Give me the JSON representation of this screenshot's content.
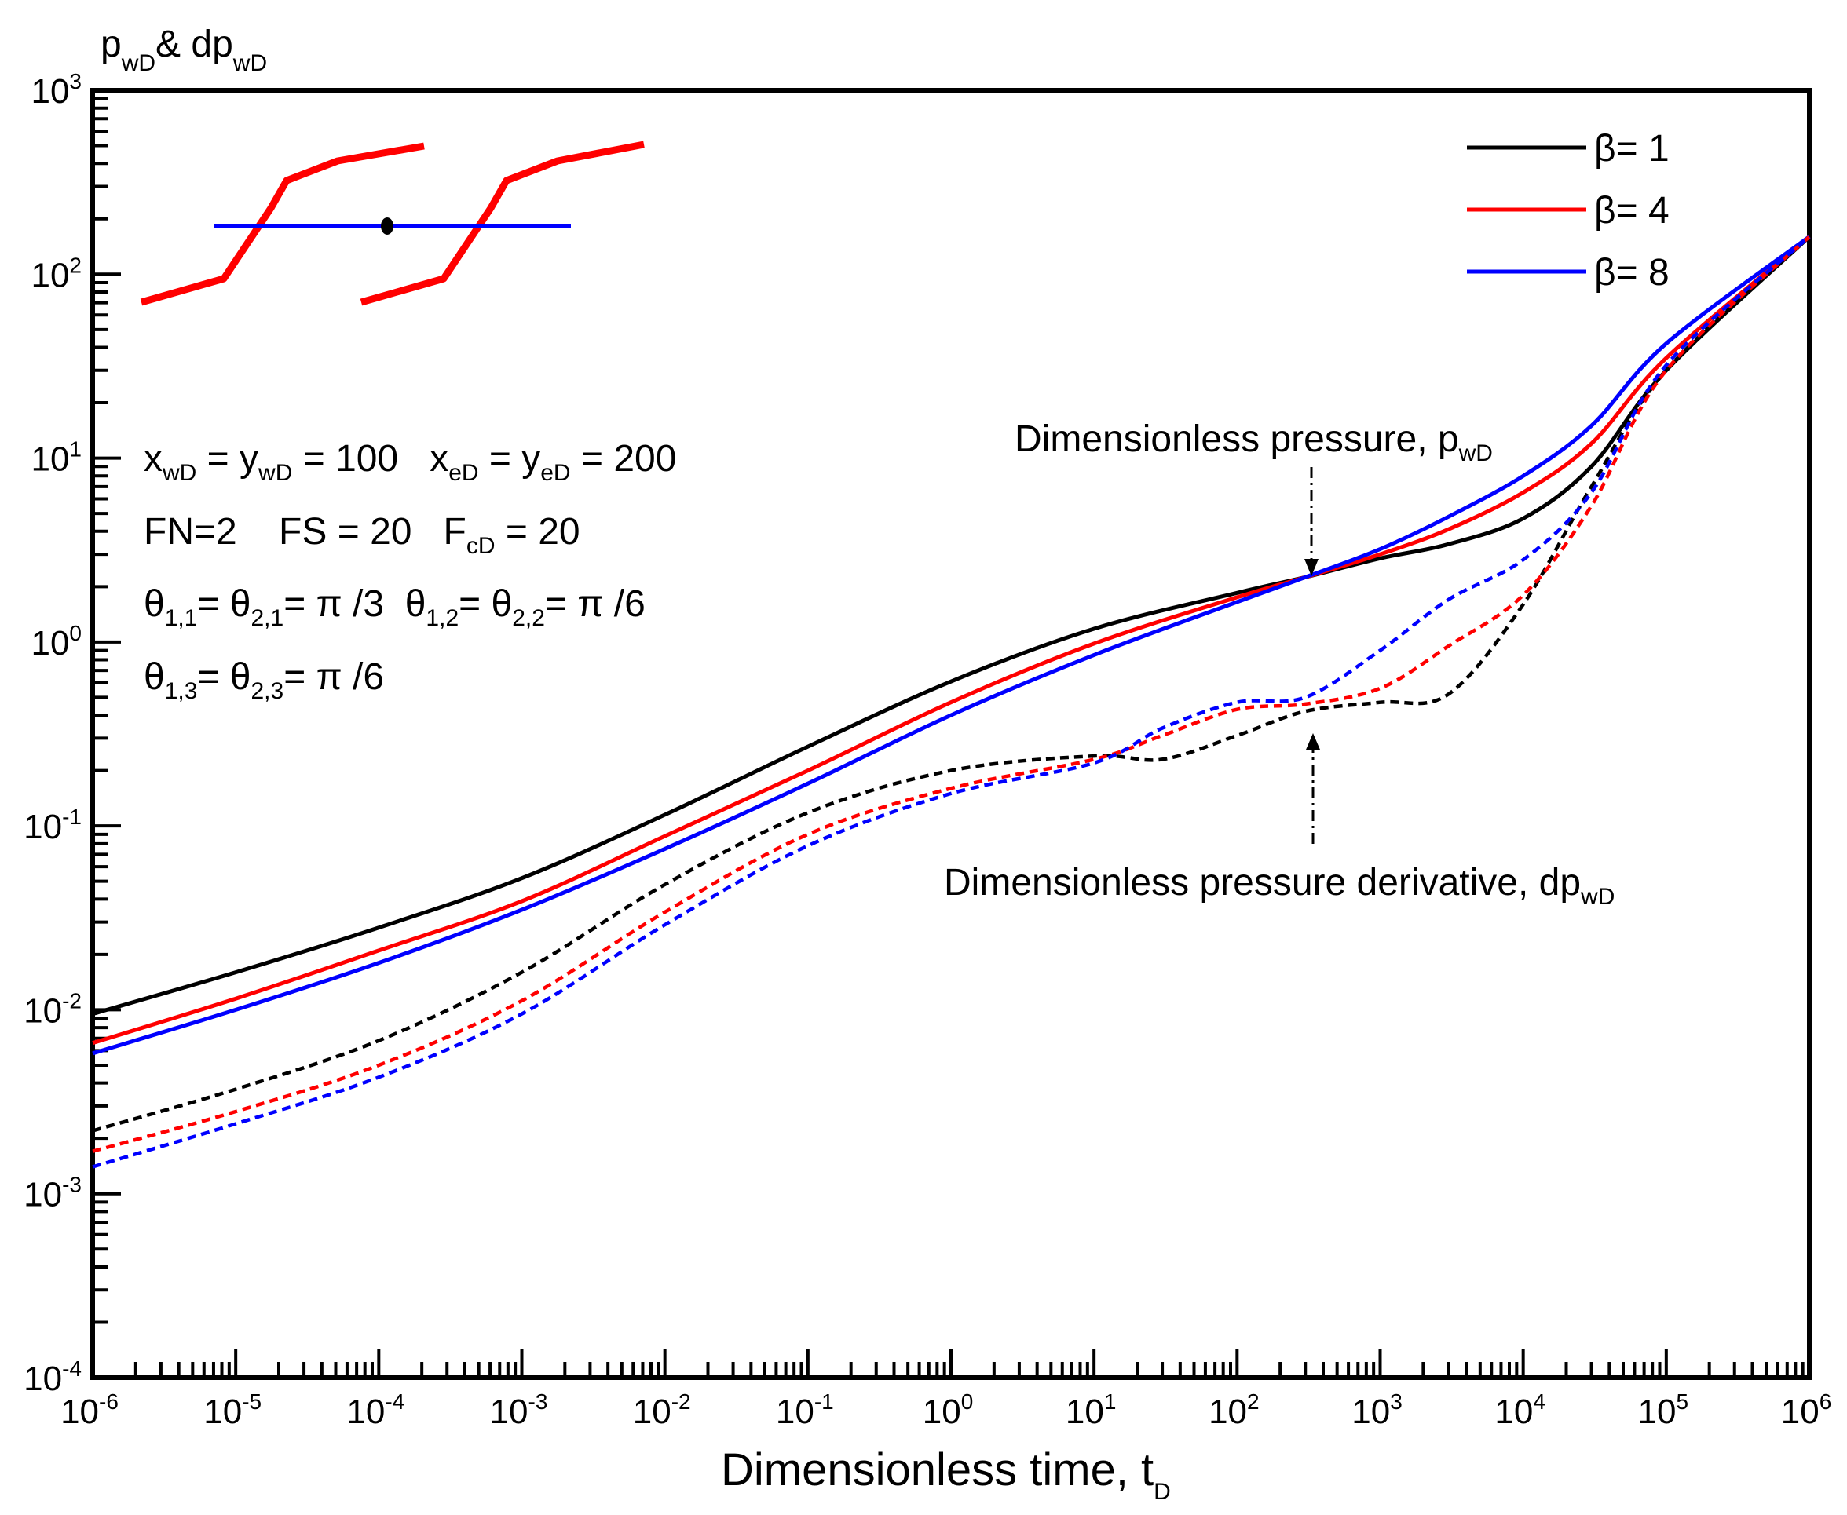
{
  "chart_data": {
    "type": "line",
    "title": "",
    "xlabel": "Dimensionless time, t",
    "xlabel_sub": "D",
    "ylabel": {
      "p": "p",
      "p_sub": "wD",
      "amp": "& dp",
      "dp_sub": "wD"
    },
    "xscale": "log",
    "yscale": "log",
    "xlim": [
      1e-06,
      1000000.0
    ],
    "ylim": [
      0.0001,
      1000.0
    ],
    "x_ticks": [
      {
        "base": "10",
        "exp": "-6"
      },
      {
        "base": "10",
        "exp": "-5"
      },
      {
        "base": "10",
        "exp": "-4"
      },
      {
        "base": "10",
        "exp": "-3"
      },
      {
        "base": "10",
        "exp": "-2"
      },
      {
        "base": "10",
        "exp": "-1"
      },
      {
        "base": "10",
        "exp": "0"
      },
      {
        "base": "10",
        "exp": "1"
      },
      {
        "base": "10",
        "exp": "2"
      },
      {
        "base": "10",
        "exp": "3"
      },
      {
        "base": "10",
        "exp": "4"
      },
      {
        "base": "10",
        "exp": "5"
      },
      {
        "base": "10",
        "exp": "6"
      }
    ],
    "y_ticks": [
      {
        "base": "10",
        "exp": "-4"
      },
      {
        "base": "10",
        "exp": "-3"
      },
      {
        "base": "10",
        "exp": "-2"
      },
      {
        "base": "10",
        "exp": "-1"
      },
      {
        "base": "10",
        "exp": "0"
      },
      {
        "base": "10",
        "exp": "1"
      },
      {
        "base": "10",
        "exp": "2"
      },
      {
        "base": "10",
        "exp": "3"
      }
    ],
    "legend": [
      {
        "label": "β= 1",
        "color": "#000000"
      },
      {
        "label": "β= 4",
        "color": "#ff0000"
      },
      {
        "label": "β= 8",
        "color": "#0000ff"
      }
    ],
    "series": [
      {
        "name": "β= 1 pressure",
        "color": "#000000",
        "dash": "solid",
        "points": [
          [
            1e-06,
            0.0095
          ],
          [
            1e-05,
            0.016
          ],
          [
            0.0001,
            0.028
          ],
          [
            0.001,
            0.052
          ],
          [
            0.01,
            0.115
          ],
          [
            0.1,
            0.27
          ],
          [
            1,
            0.61
          ],
          [
            10,
            1.18
          ],
          [
            100,
            1.85
          ],
          [
            300,
            2.25
          ],
          [
            1000,
            2.85
          ],
          [
            3000,
            3.4
          ],
          [
            10000,
            4.7
          ],
          [
            30000,
            9
          ],
          [
            100000,
            30
          ],
          [
            1000000,
            160
          ]
        ]
      },
      {
        "name": "β= 4 pressure",
        "color": "#ff0000",
        "dash": "solid",
        "points": [
          [
            1e-06,
            0.0066
          ],
          [
            1e-05,
            0.0115
          ],
          [
            0.0001,
            0.021
          ],
          [
            0.001,
            0.039
          ],
          [
            0.01,
            0.088
          ],
          [
            0.1,
            0.2
          ],
          [
            1,
            0.47
          ],
          [
            10,
            0.98
          ],
          [
            100,
            1.75
          ],
          [
            300,
            2.25
          ],
          [
            1000,
            3.0
          ],
          [
            3000,
            4.1
          ],
          [
            10000,
            6.5
          ],
          [
            30000,
            12
          ],
          [
            100000,
            35
          ],
          [
            1000000,
            160
          ]
        ]
      },
      {
        "name": "β= 8 pressure",
        "color": "#0000ff",
        "dash": "solid",
        "points": [
          [
            1e-06,
            0.0058
          ],
          [
            1e-05,
            0.01
          ],
          [
            0.0001,
            0.018
          ],
          [
            0.001,
            0.035
          ],
          [
            0.01,
            0.075
          ],
          [
            0.1,
            0.17
          ],
          [
            1,
            0.4
          ],
          [
            10,
            0.85
          ],
          [
            100,
            1.65
          ],
          [
            300,
            2.25
          ],
          [
            1000,
            3.2
          ],
          [
            3000,
            4.8
          ],
          [
            10000,
            8
          ],
          [
            30000,
            15
          ],
          [
            100000,
            42
          ],
          [
            1000000,
            160
          ]
        ]
      },
      {
        "name": "β= 1 derivative",
        "color": "#000000",
        "dash": "dashed",
        "points": [
          [
            1e-06,
            0.0022
          ],
          [
            1e-05,
            0.0037
          ],
          [
            0.0001,
            0.0068
          ],
          [
            0.001,
            0.016
          ],
          [
            0.01,
            0.048
          ],
          [
            0.1,
            0.118
          ],
          [
            1,
            0.2
          ],
          [
            10,
            0.24
          ],
          [
            30,
            0.23
          ],
          [
            100,
            0.31
          ],
          [
            300,
            0.42
          ],
          [
            1000,
            0.47
          ],
          [
            3000,
            0.52
          ],
          [
            10000,
            1.6
          ],
          [
            30000,
            7
          ],
          [
            100000,
            30
          ],
          [
            1000000,
            160
          ]
        ]
      },
      {
        "name": "β= 4 derivative",
        "color": "#ff0000",
        "dash": "dashed",
        "points": [
          [
            1e-06,
            0.0017
          ],
          [
            1e-05,
            0.0028
          ],
          [
            0.0001,
            0.005
          ],
          [
            0.001,
            0.0112
          ],
          [
            0.01,
            0.034
          ],
          [
            0.1,
            0.09
          ],
          [
            1,
            0.16
          ],
          [
            10,
            0.23
          ],
          [
            30,
            0.31
          ],
          [
            100,
            0.43
          ],
          [
            300,
            0.46
          ],
          [
            1000,
            0.56
          ],
          [
            3000,
            0.95
          ],
          [
            10000,
            1.8
          ],
          [
            30000,
            5.5
          ],
          [
            100000,
            30
          ],
          [
            1000000,
            160
          ]
        ]
      },
      {
        "name": "β= 8 derivative",
        "color": "#0000ff",
        "dash": "dashed",
        "points": [
          [
            1e-06,
            0.0014
          ],
          [
            1e-05,
            0.0024
          ],
          [
            0.0001,
            0.0043
          ],
          [
            0.001,
            0.0095
          ],
          [
            0.01,
            0.029
          ],
          [
            0.1,
            0.078
          ],
          [
            1,
            0.15
          ],
          [
            10,
            0.22
          ],
          [
            30,
            0.34
          ],
          [
            100,
            0.47
          ],
          [
            300,
            0.5
          ],
          [
            1000,
            0.9
          ],
          [
            3000,
            1.7
          ],
          [
            10000,
            2.8
          ],
          [
            30000,
            6.5
          ],
          [
            100000,
            32
          ],
          [
            1000000,
            160
          ]
        ]
      }
    ],
    "annotations": {
      "pressure": {
        "text": "Dimensionless pressure, p",
        "sub": "wD",
        "arrow_to": [
          316,
          2.25
        ]
      },
      "derivative": {
        "text": "Dimensionless pressure derivative, dp",
        "sub": "wD",
        "arrow_to": [
          316,
          0.48
        ]
      }
    },
    "params": {
      "line1": {
        "a": "x",
        "a_sub": "wD",
        "b": " = y",
        "b_sub": "wD",
        "c": " = 100   x",
        "c_sub": "eD",
        "d": " = y",
        "d_sub": "eD",
        "e": " = 200"
      },
      "line2": {
        "a": "FN=2    FS = 20   F",
        "a_sub": "cD",
        "b": " = 20"
      },
      "line3": {
        "a": "θ",
        "a_sub": "1,1",
        "b": "= θ",
        "b_sub": "2,1",
        "c": "= π /3  θ",
        "c_sub": "1,2",
        "d": "= θ",
        "d_sub": "2,2",
        "e": "= π /6"
      },
      "line4": {
        "a": "θ",
        "a_sub": "1,3",
        "b": "= θ",
        "b_sub": "2,3",
        "c": "= π /6"
      }
    }
  }
}
